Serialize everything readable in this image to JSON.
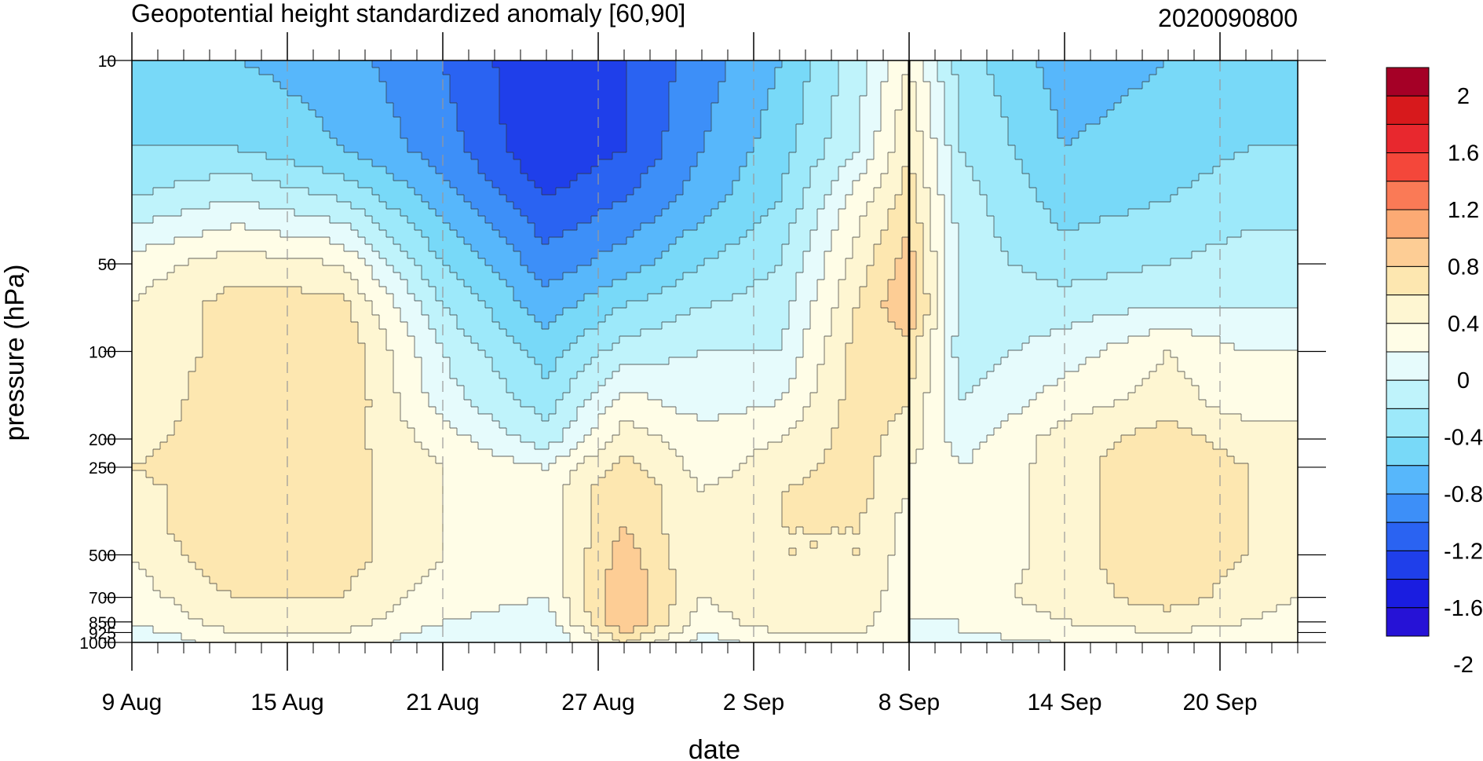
{
  "chart_data": {
    "type": "heatmap",
    "subtype": "filled-contour",
    "title": "Geopotential height standardized anomaly [60,90]",
    "timestamp": "2020090800",
    "xlabel": "date",
    "ylabel": "pressure (hPa)",
    "x_ticks": [
      {
        "date": "2020-08-09",
        "label": "9 Aug"
      },
      {
        "date": "2020-08-15",
        "label": "15 Aug"
      },
      {
        "date": "2020-08-21",
        "label": "21 Aug"
      },
      {
        "date": "2020-08-27",
        "label": "27 Aug"
      },
      {
        "date": "2020-09-02",
        "label": "2 Sep"
      },
      {
        "date": "2020-09-08",
        "label": "8 Sep"
      },
      {
        "date": "2020-09-14",
        "label": "14 Sep"
      },
      {
        "date": "2020-09-20",
        "label": "20 Sep"
      }
    ],
    "xlim": [
      "2020-08-09",
      "2020-09-23"
    ],
    "y_ticks": [
      10,
      50,
      100,
      200,
      250,
      500,
      700,
      850,
      925,
      1000
    ],
    "ylim": [
      10,
      1000
    ],
    "y_scale": "log",
    "y_inverted": true,
    "vertical_line_date": "2020-09-08",
    "dates": [
      "2020-08-09",
      "2020-08-13",
      "2020-08-17",
      "2020-08-21",
      "2020-08-25",
      "2020-08-28",
      "2020-08-31",
      "2020-09-03",
      "2020-09-06",
      "2020-09-08",
      "2020-09-10",
      "2020-09-14",
      "2020-09-18",
      "2020-09-21",
      "2020-09-23"
    ],
    "levels_hPa": [
      10,
      20,
      30,
      50,
      70,
      100,
      150,
      200,
      250,
      300,
      400,
      500,
      700,
      850,
      925,
      1000
    ],
    "values": [
      [
        -0.8,
        -0.8,
        -0.9,
        -1.2,
        -1.6,
        -1.4,
        -1.1,
        -0.8,
        -0.3,
        0.2,
        -0.5,
        -0.9,
        -0.8,
        -0.7,
        -0.6
      ],
      [
        -0.6,
        -0.6,
        -0.8,
        -1.1,
        -1.6,
        -1.4,
        -1.0,
        -0.7,
        -0.2,
        0.4,
        -0.4,
        -0.8,
        -0.7,
        -0.6,
        -0.6
      ],
      [
        -0.4,
        -0.2,
        -0.4,
        -0.9,
        -1.4,
        -1.2,
        -0.9,
        -0.6,
        0.1,
        0.5,
        -0.3,
        -0.7,
        -0.6,
        -0.5,
        -0.5
      ],
      [
        0.1,
        0.3,
        0.2,
        -0.6,
        -1.1,
        -0.9,
        -0.6,
        -0.4,
        0.3,
        0.7,
        -0.3,
        -0.5,
        -0.4,
        -0.3,
        -0.3
      ],
      [
        0.2,
        0.5,
        0.5,
        -0.4,
        -0.9,
        -0.6,
        -0.4,
        -0.3,
        0.4,
        0.8,
        -0.3,
        -0.3,
        -0.2,
        -0.2,
        -0.2
      ],
      [
        0.2,
        0.5,
        0.6,
        -0.2,
        -0.7,
        -0.3,
        -0.2,
        -0.2,
        0.5,
        0.5,
        -0.3,
        -0.1,
        0.2,
        0.0,
        0.0
      ],
      [
        0.2,
        0.6,
        0.6,
        -0.1,
        -0.5,
        0.1,
        -0.1,
        0.0,
        0.5,
        0.4,
        -0.2,
        0.1,
        0.3,
        0.1,
        0.1
      ],
      [
        0.3,
        0.6,
        0.5,
        0.1,
        -0.3,
        0.3,
        0.1,
        0.2,
        0.5,
        0.3,
        -0.1,
        0.3,
        0.5,
        0.3,
        0.3
      ],
      [
        0.4,
        0.6,
        0.5,
        0.2,
        0.0,
        0.5,
        0.1,
        0.3,
        0.5,
        0.2,
        0.0,
        0.3,
        0.6,
        0.4,
        0.3
      ],
      [
        0.3,
        0.6,
        0.5,
        0.2,
        0.1,
        0.6,
        0.2,
        0.4,
        0.5,
        0.2,
        0.0,
        0.3,
        0.6,
        0.4,
        0.3
      ],
      [
        0.3,
        0.6,
        0.5,
        0.2,
        0.1,
        0.6,
        0.2,
        0.4,
        0.4,
        0.1,
        0.0,
        0.3,
        0.6,
        0.4,
        0.3
      ],
      [
        0.2,
        0.6,
        0.5,
        0.2,
        0.1,
        0.7,
        0.2,
        0.4,
        0.4,
        0.1,
        0.0,
        0.3,
        0.6,
        0.4,
        0.2
      ],
      [
        0.1,
        0.4,
        0.4,
        0.1,
        0.0,
        0.8,
        0.2,
        0.4,
        0.3,
        0.1,
        0.1,
        0.3,
        0.5,
        0.3,
        0.2
      ],
      [
        0.0,
        0.3,
        0.3,
        0.0,
        -0.1,
        0.8,
        0.1,
        0.3,
        0.3,
        0.0,
        0.0,
        0.2,
        0.3,
        0.2,
        0.1
      ],
      [
        -0.1,
        0.2,
        0.2,
        -0.1,
        -0.2,
        0.6,
        0.0,
        0.2,
        0.2,
        0.0,
        0.0,
        0.1,
        0.2,
        0.1,
        0.1
      ],
      [
        -0.2,
        0.1,
        0.1,
        -0.1,
        -0.2,
        0.4,
        -0.1,
        0.1,
        0.1,
        0.0,
        -0.1,
        0.0,
        0.1,
        0.0,
        0.0
      ]
    ],
    "colorbar": {
      "labels": [
        "2",
        "1.6",
        "1.2",
        "0.8",
        "0.4",
        "0",
        "-0.4",
        "-0.8",
        "-1.2",
        "-1.6",
        "-2"
      ],
      "colors": [
        "#a50026",
        "#d7191c",
        "#e8282e",
        "#f4473a",
        "#fa7a56",
        "#fcaa74",
        "#fdcd95",
        "#fde7b0",
        "#fef6d2",
        "#fffde7",
        "#e6fbfc",
        "#bff3fb",
        "#9de9fa",
        "#78d9f8",
        "#57b7fb",
        "#3d8ff8",
        "#2a63f2",
        "#1f3fea",
        "#1a1de0",
        "#2612d6"
      ],
      "thresholds": [
        1.8,
        1.6,
        1.4,
        1.2,
        1.0,
        0.8,
        0.6,
        0.4,
        0.2,
        0.0,
        -0.2,
        -0.4,
        -0.6,
        -0.8,
        -1.0,
        -1.2,
        -1.4,
        -1.6,
        -1.8
      ]
    }
  }
}
